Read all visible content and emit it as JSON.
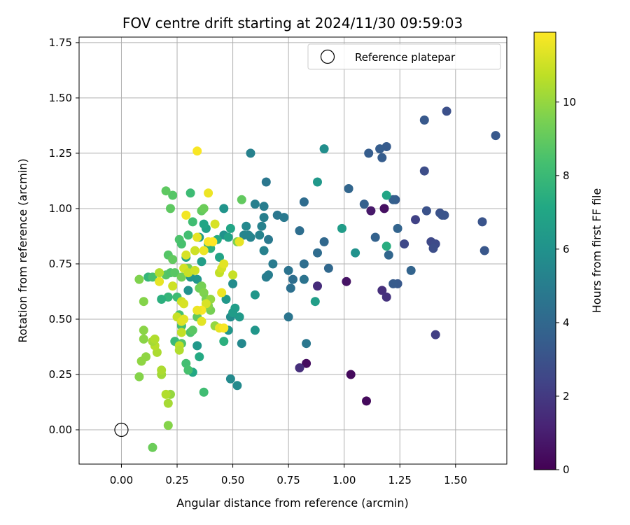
{
  "chart_data": {
    "type": "scatter",
    "title": "FOV centre drift starting at 2024/11/30 09:59:03",
    "xlabel": "Angular distance from reference (arcmin)",
    "ylabel": "Rotation from reference (arcmin)",
    "xlim": [
      -0.19,
      1.73
    ],
    "ylim": [
      -0.155,
      1.775
    ],
    "xticks": [
      "0.00",
      "0.25",
      "0.50",
      "0.75",
      "1.00",
      "1.25",
      "1.50"
    ],
    "xtick_values": [
      0,
      0.25,
      0.5,
      0.75,
      1.0,
      1.25,
      1.5
    ],
    "yticks": [
      "0.00",
      "0.25",
      "0.50",
      "0.75",
      "1.00",
      "1.25",
      "1.50",
      "1.75"
    ],
    "ytick_values": [
      0,
      0.25,
      0.5,
      0.75,
      1.0,
      1.25,
      1.5,
      1.75
    ],
    "grid": true,
    "colormap": "viridis",
    "colorbar": {
      "label": "Hours from first FF file",
      "range": [
        0,
        11.9
      ],
      "ticks": [
        "0",
        "2",
        "4",
        "6",
        "8",
        "10"
      ],
      "tick_values": [
        0,
        2,
        4,
        6,
        8,
        10
      ]
    },
    "legend": {
      "placement": "top-right",
      "entries": [
        "Reference platepar"
      ]
    },
    "reference_point": {
      "x": 0.0,
      "y": 0.0
    },
    "points": [
      {
        "x": 1.1,
        "y": 0.13,
        "c": 0.3
      },
      {
        "x": 1.03,
        "y": 0.25,
        "c": 0.3
      },
      {
        "x": 0.83,
        "y": 0.3,
        "c": 0.4
      },
      {
        "x": 1.01,
        "y": 0.67,
        "c": 0.6
      },
      {
        "x": 1.18,
        "y": 1.0,
        "c": 0.5
      },
      {
        "x": 1.12,
        "y": 0.99,
        "c": 0.8
      },
      {
        "x": 0.8,
        "y": 0.28,
        "c": 1.6
      },
      {
        "x": 0.88,
        "y": 0.65,
        "c": 1.5
      },
      {
        "x": 1.17,
        "y": 0.63,
        "c": 1.6
      },
      {
        "x": 1.19,
        "y": 0.6,
        "c": 1.7
      },
      {
        "x": 1.41,
        "y": 0.43,
        "c": 2.2
      },
      {
        "x": 1.32,
        "y": 0.95,
        "c": 2.3
      },
      {
        "x": 1.27,
        "y": 0.84,
        "c": 2.6
      },
      {
        "x": 1.39,
        "y": 0.85,
        "c": 2.6
      },
      {
        "x": 1.41,
        "y": 0.84,
        "c": 2.7
      },
      {
        "x": 1.4,
        "y": 0.82,
        "c": 2.8
      },
      {
        "x": 1.36,
        "y": 1.17,
        "c": 2.8
      },
      {
        "x": 1.46,
        "y": 1.44,
        "c": 2.9
      },
      {
        "x": 1.37,
        "y": 0.99,
        "c": 3.0
      },
      {
        "x": 1.43,
        "y": 0.98,
        "c": 3.0
      },
      {
        "x": 1.44,
        "y": 0.97,
        "c": 3.1
      },
      {
        "x": 1.45,
        "y": 0.97,
        "c": 3.1
      },
      {
        "x": 1.62,
        "y": 0.94,
        "c": 3.1
      },
      {
        "x": 1.63,
        "y": 0.81,
        "c": 3.2
      },
      {
        "x": 1.68,
        "y": 1.33,
        "c": 3.3
      },
      {
        "x": 1.36,
        "y": 1.4,
        "c": 3.3
      },
      {
        "x": 1.24,
        "y": 0.66,
        "c": 3.3
      },
      {
        "x": 1.22,
        "y": 0.66,
        "c": 3.4
      },
      {
        "x": 1.23,
        "y": 1.04,
        "c": 3.4
      },
      {
        "x": 1.19,
        "y": 1.28,
        "c": 3.4
      },
      {
        "x": 1.16,
        "y": 1.27,
        "c": 3.5
      },
      {
        "x": 1.17,
        "y": 1.23,
        "c": 3.5
      },
      {
        "x": 1.11,
        "y": 1.25,
        "c": 3.5
      },
      {
        "x": 1.22,
        "y": 1.04,
        "c": 3.6
      },
      {
        "x": 1.09,
        "y": 1.02,
        "c": 3.6
      },
      {
        "x": 1.14,
        "y": 0.87,
        "c": 3.7
      },
      {
        "x": 1.24,
        "y": 0.91,
        "c": 3.8
      },
      {
        "x": 1.3,
        "y": 0.72,
        "c": 3.8
      },
      {
        "x": 1.2,
        "y": 0.79,
        "c": 3.9
      },
      {
        "x": 1.02,
        "y": 1.09,
        "c": 3.9
      },
      {
        "x": 0.91,
        "y": 0.85,
        "c": 4.0
      },
      {
        "x": 0.93,
        "y": 0.73,
        "c": 4.0
      },
      {
        "x": 0.82,
        "y": 1.03,
        "c": 4.2
      },
      {
        "x": 0.88,
        "y": 0.8,
        "c": 4.2
      },
      {
        "x": 0.8,
        "y": 0.9,
        "c": 4.3
      },
      {
        "x": 0.82,
        "y": 0.75,
        "c": 4.3
      },
      {
        "x": 0.77,
        "y": 0.68,
        "c": 4.3
      },
      {
        "x": 0.76,
        "y": 0.64,
        "c": 4.4
      },
      {
        "x": 0.75,
        "y": 0.72,
        "c": 4.5
      },
      {
        "x": 0.82,
        "y": 0.68,
        "c": 4.5
      },
      {
        "x": 0.75,
        "y": 0.51,
        "c": 4.6
      },
      {
        "x": 0.83,
        "y": 0.39,
        "c": 4.7
      },
      {
        "x": 0.65,
        "y": 1.12,
        "c": 4.7
      },
      {
        "x": 0.7,
        "y": 0.97,
        "c": 4.7
      },
      {
        "x": 0.73,
        "y": 0.96,
        "c": 4.8
      },
      {
        "x": 0.66,
        "y": 0.86,
        "c": 4.8
      },
      {
        "x": 0.68,
        "y": 0.75,
        "c": 4.9
      },
      {
        "x": 0.65,
        "y": 0.69,
        "c": 5.0
      },
      {
        "x": 0.66,
        "y": 0.7,
        "c": 5.0
      },
      {
        "x": 0.64,
        "y": 1.01,
        "c": 5.0
      },
      {
        "x": 0.6,
        "y": 1.02,
        "c": 5.1
      },
      {
        "x": 0.64,
        "y": 0.96,
        "c": 5.1
      },
      {
        "x": 0.63,
        "y": 0.92,
        "c": 5.2
      },
      {
        "x": 0.64,
        "y": 0.81,
        "c": 5.2
      },
      {
        "x": 0.58,
        "y": 1.25,
        "c": 5.2
      },
      {
        "x": 0.62,
        "y": 0.88,
        "c": 5.3
      },
      {
        "x": 0.58,
        "y": 0.87,
        "c": 5.3
      },
      {
        "x": 0.57,
        "y": 0.88,
        "c": 5.4
      },
      {
        "x": 0.55,
        "y": 0.88,
        "c": 5.4
      },
      {
        "x": 0.56,
        "y": 0.92,
        "c": 5.5
      },
      {
        "x": 0.54,
        "y": 0.39,
        "c": 5.5
      },
      {
        "x": 0.52,
        "y": 0.2,
        "c": 5.6
      },
      {
        "x": 0.49,
        "y": 0.23,
        "c": 5.6
      },
      {
        "x": 0.49,
        "y": 0.51,
        "c": 5.7
      },
      {
        "x": 0.5,
        "y": 0.66,
        "c": 5.7
      },
      {
        "x": 0.91,
        "y": 1.27,
        "c": 5.8
      },
      {
        "x": 0.99,
        "y": 0.91,
        "c": 6.5
      },
      {
        "x": 1.05,
        "y": 0.8,
        "c": 6.0
      },
      {
        "x": 0.88,
        "y": 1.12,
        "c": 6.3
      },
      {
        "x": 0.87,
        "y": 0.58,
        "c": 6.6
      },
      {
        "x": 1.19,
        "y": 1.06,
        "c": 7.0
      },
      {
        "x": 1.19,
        "y": 0.83,
        "c": 7.4
      },
      {
        "x": 0.6,
        "y": 0.45,
        "c": 6.2
      },
      {
        "x": 0.6,
        "y": 0.61,
        "c": 6.2
      },
      {
        "x": 0.53,
        "y": 0.51,
        "c": 6.4
      },
      {
        "x": 0.51,
        "y": 0.55,
        "c": 6.6
      },
      {
        "x": 0.5,
        "y": 0.53,
        "c": 6.5
      },
      {
        "x": 0.48,
        "y": 0.45,
        "c": 6.2
      },
      {
        "x": 0.47,
        "y": 0.59,
        "c": 6.3
      },
      {
        "x": 0.46,
        "y": 0.88,
        "c": 6.0
      },
      {
        "x": 0.46,
        "y": 1.0,
        "c": 6.1
      },
      {
        "x": 0.48,
        "y": 0.87,
        "c": 6.8
      },
      {
        "x": 0.49,
        "y": 0.91,
        "c": 7.0
      },
      {
        "x": 0.44,
        "y": 0.78,
        "c": 6.9
      },
      {
        "x": 0.43,
        "y": 0.86,
        "c": 7.2
      },
      {
        "x": 0.4,
        "y": 0.82,
        "c": 7.5
      },
      {
        "x": 0.39,
        "y": 0.84,
        "c": 7.4
      },
      {
        "x": 0.38,
        "y": 0.91,
        "c": 6.8
      },
      {
        "x": 0.37,
        "y": 0.93,
        "c": 7.0
      },
      {
        "x": 0.36,
        "y": 0.76,
        "c": 6.6
      },
      {
        "x": 0.35,
        "y": 0.87,
        "c": 6.4
      },
      {
        "x": 0.34,
        "y": 0.38,
        "c": 6.3
      },
      {
        "x": 0.34,
        "y": 0.68,
        "c": 6.2
      },
      {
        "x": 0.31,
        "y": 0.69,
        "c": 6.1
      },
      {
        "x": 0.3,
        "y": 0.63,
        "c": 6.0
      },
      {
        "x": 0.29,
        "y": 0.78,
        "c": 6.8
      },
      {
        "x": 0.35,
        "y": 0.33,
        "c": 7.2
      },
      {
        "x": 0.32,
        "y": 0.26,
        "c": 7.1
      },
      {
        "x": 0.46,
        "y": 0.4,
        "c": 7.5
      },
      {
        "x": 0.37,
        "y": 0.17,
        "c": 8.2
      },
      {
        "x": 0.29,
        "y": 0.3,
        "c": 8.3
      },
      {
        "x": 0.3,
        "y": 0.27,
        "c": 8.4
      },
      {
        "x": 0.24,
        "y": 0.4,
        "c": 8.0
      },
      {
        "x": 0.27,
        "y": 0.39,
        "c": 8.6
      },
      {
        "x": 0.27,
        "y": 0.47,
        "c": 8.3
      },
      {
        "x": 0.26,
        "y": 0.52,
        "c": 8.4
      },
      {
        "x": 0.25,
        "y": 0.6,
        "c": 8.1
      },
      {
        "x": 0.21,
        "y": 0.6,
        "c": 7.8
      },
      {
        "x": 0.18,
        "y": 0.59,
        "c": 7.5
      },
      {
        "x": 0.12,
        "y": 0.69,
        "c": 7.8
      },
      {
        "x": 0.14,
        "y": 0.69,
        "c": 8.4
      },
      {
        "x": 0.2,
        "y": 0.7,
        "c": 8.7
      },
      {
        "x": 0.22,
        "y": 0.71,
        "c": 8.6
      },
      {
        "x": 0.24,
        "y": 0.71,
        "c": 8.8
      },
      {
        "x": 0.26,
        "y": 0.86,
        "c": 8.5
      },
      {
        "x": 0.27,
        "y": 0.84,
        "c": 8.4
      },
      {
        "x": 0.3,
        "y": 0.88,
        "c": 8.3
      },
      {
        "x": 0.32,
        "y": 0.94,
        "c": 8.2
      },
      {
        "x": 0.31,
        "y": 1.07,
        "c": 8.1
      },
      {
        "x": 0.23,
        "y": 1.06,
        "c": 8.7
      },
      {
        "x": 0.2,
        "y": 1.08,
        "c": 8.9
      },
      {
        "x": 0.22,
        "y": 1.0,
        "c": 8.9
      },
      {
        "x": 0.21,
        "y": 0.79,
        "c": 8.7
      },
      {
        "x": 0.23,
        "y": 0.77,
        "c": 9.0
      },
      {
        "x": 0.27,
        "y": 0.69,
        "c": 9.3
      },
      {
        "x": 0.3,
        "y": 0.73,
        "c": 9.4
      },
      {
        "x": 0.31,
        "y": 0.44,
        "c": 8.5
      },
      {
        "x": 0.32,
        "y": 0.45,
        "c": 8.8
      },
      {
        "x": 0.34,
        "y": 0.51,
        "c": 9.0
      },
      {
        "x": 0.36,
        "y": 0.99,
        "c": 9.0
      },
      {
        "x": 0.37,
        "y": 1.0,
        "c": 9.2
      },
      {
        "x": 0.35,
        "y": 0.64,
        "c": 9.3
      },
      {
        "x": 0.36,
        "y": 0.65,
        "c": 9.4
      },
      {
        "x": 0.37,
        "y": 0.62,
        "c": 9.6
      },
      {
        "x": 0.38,
        "y": 0.59,
        "c": 9.5
      },
      {
        "x": 0.4,
        "y": 0.54,
        "c": 9.4
      },
      {
        "x": 0.39,
        "y": 0.56,
        "c": 9.7
      },
      {
        "x": 0.42,
        "y": 0.47,
        "c": 10.0
      },
      {
        "x": 0.4,
        "y": 0.59,
        "c": 10.0
      },
      {
        "x": 0.54,
        "y": 1.04,
        "c": 9.0
      },
      {
        "x": 0.52,
        "y": 0.85,
        "c": 9.5
      },
      {
        "x": 0.08,
        "y": 0.68,
        "c": 9.6
      },
      {
        "x": 0.1,
        "y": 0.58,
        "c": 9.7
      },
      {
        "x": 0.1,
        "y": 0.45,
        "c": 9.8
      },
      {
        "x": 0.1,
        "y": 0.41,
        "c": 9.8
      },
      {
        "x": 0.11,
        "y": 0.33,
        "c": 9.9
      },
      {
        "x": 0.09,
        "y": 0.31,
        "c": 9.9
      },
      {
        "x": 0.08,
        "y": 0.24,
        "c": 9.7
      },
      {
        "x": 0.14,
        "y": -0.08,
        "c": 9.2
      },
      {
        "x": 0.21,
        "y": 0.02,
        "c": 9.7
      },
      {
        "x": 0.21,
        "y": 0.12,
        "c": 10.3
      },
      {
        "x": 0.22,
        "y": 0.16,
        "c": 10.0
      },
      {
        "x": 0.2,
        "y": 0.16,
        "c": 10.5
      },
      {
        "x": 0.18,
        "y": 0.25,
        "c": 10.2
      },
      {
        "x": 0.18,
        "y": 0.27,
        "c": 10.4
      },
      {
        "x": 0.16,
        "y": 0.35,
        "c": 10.4
      },
      {
        "x": 0.15,
        "y": 0.38,
        "c": 10.6
      },
      {
        "x": 0.14,
        "y": 0.4,
        "c": 10.3
      },
      {
        "x": 0.15,
        "y": 0.41,
        "c": 10.5
      },
      {
        "x": 0.26,
        "y": 0.38,
        "c": 10.7
      },
      {
        "x": 0.26,
        "y": 0.36,
        "c": 10.5
      },
      {
        "x": 0.27,
        "y": 0.44,
        "c": 10.8
      },
      {
        "x": 0.25,
        "y": 0.51,
        "c": 10.9
      },
      {
        "x": 0.27,
        "y": 0.49,
        "c": 11.3
      },
      {
        "x": 0.28,
        "y": 0.5,
        "c": 11.4
      },
      {
        "x": 0.27,
        "y": 0.58,
        "c": 11.0
      },
      {
        "x": 0.28,
        "y": 0.57,
        "c": 11.2
      },
      {
        "x": 0.23,
        "y": 0.65,
        "c": 11.0
      },
      {
        "x": 0.17,
        "y": 0.67,
        "c": 11.5
      },
      {
        "x": 0.17,
        "y": 0.71,
        "c": 10.5
      },
      {
        "x": 0.28,
        "y": 0.73,
        "c": 11.1
      },
      {
        "x": 0.3,
        "y": 0.71,
        "c": 10.9
      },
      {
        "x": 0.29,
        "y": 0.79,
        "c": 11.2
      },
      {
        "x": 0.29,
        "y": 0.97,
        "c": 11.7
      },
      {
        "x": 0.33,
        "y": 0.72,
        "c": 11.0
      },
      {
        "x": 0.33,
        "y": 0.81,
        "c": 11.0
      },
      {
        "x": 0.34,
        "y": 0.87,
        "c": 11.5
      },
      {
        "x": 0.34,
        "y": 1.26,
        "c": 11.8
      },
      {
        "x": 0.38,
        "y": 0.57,
        "c": 11.2
      },
      {
        "x": 0.36,
        "y": 0.54,
        "c": 11.8
      },
      {
        "x": 0.36,
        "y": 0.49,
        "c": 11.4
      },
      {
        "x": 0.37,
        "y": 0.81,
        "c": 11.6
      },
      {
        "x": 0.39,
        "y": 0.85,
        "c": 11.8
      },
      {
        "x": 0.42,
        "y": 0.93,
        "c": 11.2
      },
      {
        "x": 0.39,
        "y": 1.07,
        "c": 11.6
      },
      {
        "x": 0.44,
        "y": 0.46,
        "c": 11.5
      },
      {
        "x": 0.46,
        "y": 0.46,
        "c": 11.8
      },
      {
        "x": 0.45,
        "y": 0.62,
        "c": 11.6
      },
      {
        "x": 0.44,
        "y": 0.71,
        "c": 10.8
      },
      {
        "x": 0.45,
        "y": 0.73,
        "c": 11.1
      },
      {
        "x": 0.46,
        "y": 0.75,
        "c": 11.4
      },
      {
        "x": 0.5,
        "y": 0.7,
        "c": 10.9
      },
      {
        "x": 0.53,
        "y": 0.85,
        "c": 11.5
      },
      {
        "x": 0.41,
        "y": 0.85,
        "c": 11.9
      },
      {
        "x": 0.34,
        "y": 0.54,
        "c": 11.6
      }
    ]
  }
}
